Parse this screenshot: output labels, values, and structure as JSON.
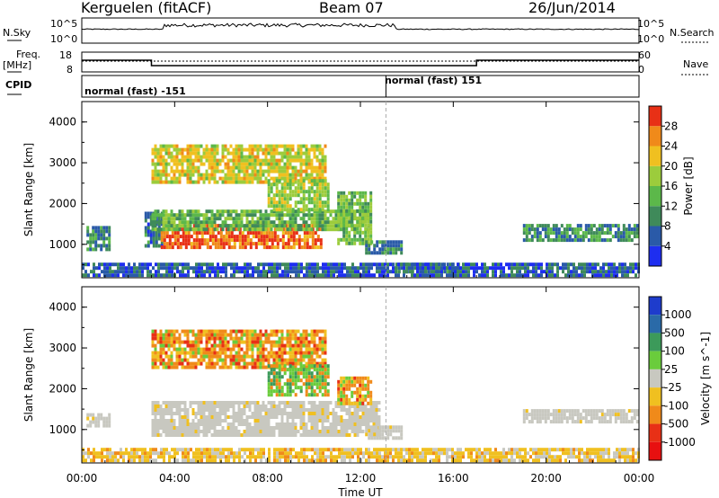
{
  "header": {
    "station": "Kerguelen (fitACF)",
    "beam": "Beam 07",
    "date": "26/Jun/2014"
  },
  "left_labels": {
    "nsky": "N.Sky",
    "freq_line1": "Freq.",
    "freq_line2": "[MHz]",
    "cpid": "CPID"
  },
  "right_labels": {
    "nsearch": "N.Search",
    "nave": "Nave"
  },
  "panels": {
    "nsky_ticks": [
      "10^5",
      "10^0"
    ],
    "nsearch_ticks": [
      "10^5",
      "10^0"
    ],
    "freq_ticks": [
      "18",
      "8"
    ],
    "nave_ticks": [
      "60",
      "0"
    ],
    "cpid_segments": [
      "normal (fast) -151",
      "normal (fast) 151"
    ]
  },
  "chart_data": [
    {
      "type": "heatmap",
      "name": "power",
      "ylabel": "Slant Range [km]",
      "xlabel": "",
      "x_ticks": [
        "00:00",
        "04:00",
        "08:00",
        "12:00",
        "16:00",
        "20:00",
        "00:00"
      ],
      "y_ticks": [
        1000,
        2000,
        3000,
        4000
      ],
      "ylim": [
        180,
        4500
      ],
      "xlim_hours": [
        0,
        24
      ],
      "colorbar": {
        "label": "Power [dB]",
        "ticks": [
          4,
          8,
          12,
          16,
          20,
          24,
          28
        ],
        "range": [
          0,
          32
        ],
        "colors": [
          "#1e2ef0",
          "#2a5aa8",
          "#3f8a5a",
          "#5cb84a",
          "#9ccc3c",
          "#f0c020",
          "#f08a1a",
          "#e83016"
        ]
      },
      "regions": [
        {
          "t": [
            0.2,
            1.2
          ],
          "r": [
            850,
            1450
          ],
          "level": 10
        },
        {
          "t": [
            2.7,
            3.4
          ],
          "r": [
            950,
            1800
          ],
          "level": 8
        },
        {
          "t": [
            3.4,
            10.3
          ],
          "r": [
            900,
            1500
          ],
          "level": 28
        },
        {
          "t": [
            3.0,
            12.3
          ],
          "r": [
            1400,
            1850
          ],
          "level": 14
        },
        {
          "t": [
            3.0,
            10.5
          ],
          "r": [
            2500,
            3450
          ],
          "level": 20
        },
        {
          "t": [
            8.0,
            10.6
          ],
          "r": [
            1850,
            2600
          ],
          "level": 17
        },
        {
          "t": [
            11.0,
            12.5
          ],
          "r": [
            1050,
            2300
          ],
          "level": 15
        },
        {
          "t": [
            12.2,
            13.8
          ],
          "r": [
            800,
            1100
          ],
          "level": 9
        },
        {
          "t": [
            13.5,
            16.2
          ],
          "r": [
            300,
            550
          ],
          "level": 9
        },
        {
          "t": [
            19.0,
            23.9
          ],
          "r": [
            1100,
            1500
          ],
          "level": 10
        },
        {
          "t": [
            0.0,
            24.0
          ],
          "r": [
            200,
            550
          ],
          "level": 6
        }
      ]
    },
    {
      "type": "heatmap",
      "name": "velocity",
      "ylabel": "Slant Range [km]",
      "xlabel": "Time UT",
      "x_ticks": [
        "00:00",
        "04:00",
        "08:00",
        "12:00",
        "16:00",
        "20:00",
        "00:00"
      ],
      "y_ticks": [
        1000,
        2000,
        3000,
        4000
      ],
      "ylim": [
        180,
        4500
      ],
      "xlim_hours": [
        0,
        24
      ],
      "colorbar": {
        "label": "Velocity [m s^-1]",
        "ticks": [
          "1000",
          "500",
          "100",
          "25",
          "-25",
          "-100",
          "-500",
          "-1000"
        ],
        "colors": [
          "#1e3ccc",
          "#2a6aa8",
          "#3c9a5a",
          "#6acc3c",
          "#c8c8c0",
          "#f0c020",
          "#f08a1a",
          "#e83016",
          "#e81010"
        ]
      },
      "regions": [
        {
          "t": [
            0.2,
            1.2
          ],
          "r": [
            1050,
            1400
          ],
          "level": "ground"
        },
        {
          "t": [
            3.0,
            12.8
          ],
          "r": [
            900,
            1700
          ],
          "level": "ground"
        },
        {
          "t": [
            3.0,
            10.5
          ],
          "r": [
            2500,
            3450
          ],
          "level": "negative"
        },
        {
          "t": [
            8.0,
            10.6
          ],
          "r": [
            1850,
            2600
          ],
          "level": "positive"
        },
        {
          "t": [
            11.0,
            12.4
          ],
          "r": [
            1600,
            2300
          ],
          "level": "negative"
        },
        {
          "t": [
            12.2,
            13.8
          ],
          "r": [
            800,
            1100
          ],
          "level": "ground"
        },
        {
          "t": [
            19.0,
            23.9
          ],
          "r": [
            1150,
            1500
          ],
          "level": "ground"
        },
        {
          "t": [
            0.0,
            24.0
          ],
          "r": [
            200,
            550
          ],
          "level": "negative_small"
        }
      ]
    }
  ]
}
